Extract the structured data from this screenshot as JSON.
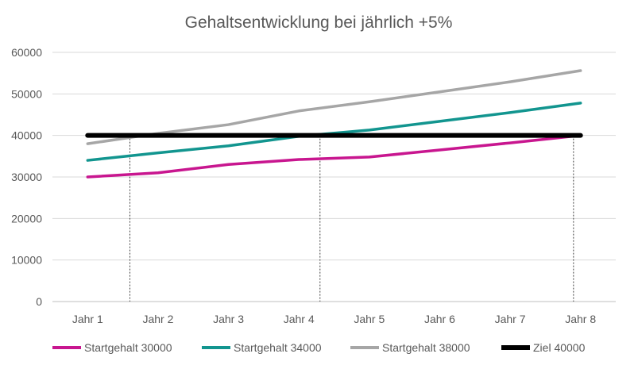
{
  "chart_data": {
    "type": "line",
    "title": "Gehaltsentwicklung bei jährlich +5%",
    "xlabel": "",
    "ylabel": "",
    "categories": [
      "Jahr 1",
      "Jahr 2",
      "Jahr 3",
      "Jahr 4",
      "Jahr 5",
      "Jahr 6",
      "Jahr 7",
      "Jahr 8"
    ],
    "ylim": [
      0,
      60000
    ],
    "yticks": [
      "0",
      "10000",
      "20000",
      "30000",
      "40000",
      "50000",
      "60000"
    ],
    "grid": true,
    "legend_position": "bottom",
    "series": [
      {
        "name": "Startgehalt 30000",
        "color": "#c8168f",
        "values": [
          30000,
          31000,
          33000,
          34200,
          34800,
          36500,
          38200,
          40000
        ]
      },
      {
        "name": "Startgehalt 34000",
        "color": "#12958f",
        "values": [
          34000,
          35800,
          37500,
          39800,
          41300,
          43400,
          45500,
          47800
        ]
      },
      {
        "name": "Startgehalt 38000",
        "color": "#a6a6a6",
        "values": [
          38000,
          40500,
          42600,
          45900,
          48100,
          50500,
          52900,
          55600
        ]
      },
      {
        "name": "Ziel 40000",
        "color": "#000000",
        "values": [
          40000,
          40000,
          40000,
          40000,
          40000,
          40000,
          40000,
          40000
        ]
      }
    ],
    "annotations": {
      "drop_lines_at": [
        1.6,
        4.3,
        7.9
      ],
      "style": "dotted vertical marker lines where each salary reaches the target"
    }
  }
}
